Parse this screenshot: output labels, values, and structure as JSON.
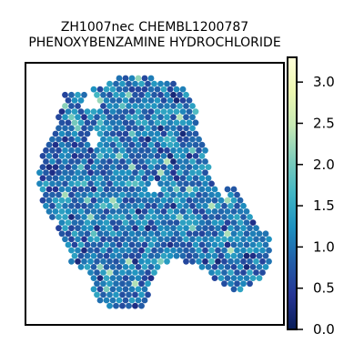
{
  "chart_data": {
    "type": "heatmap",
    "title_line1": "ZH1007nec CHEMBL1200787",
    "title_line2": "PHENOXYBENZAMINE HYDROCHLORIDE",
    "colorbar": {
      "min": 0.0,
      "max": 3.3,
      "ticks": [
        "0.0",
        "0.5",
        "1.0",
        "1.5",
        "2.0",
        "2.5",
        "3.0"
      ],
      "tick_values": [
        0.0,
        0.5,
        1.0,
        1.5,
        2.0,
        2.5,
        3.0
      ],
      "colormap": "YlGnBu",
      "colors": [
        "#081d58",
        "#253494",
        "#225ea8",
        "#1d91c0",
        "#41b6c4",
        "#7fcdbb",
        "#c7e9b4",
        "#edf8b1",
        "#ffffd9"
      ]
    },
    "typical_value_range": [
      0.4,
      1.8
    ],
    "grid": false
  }
}
